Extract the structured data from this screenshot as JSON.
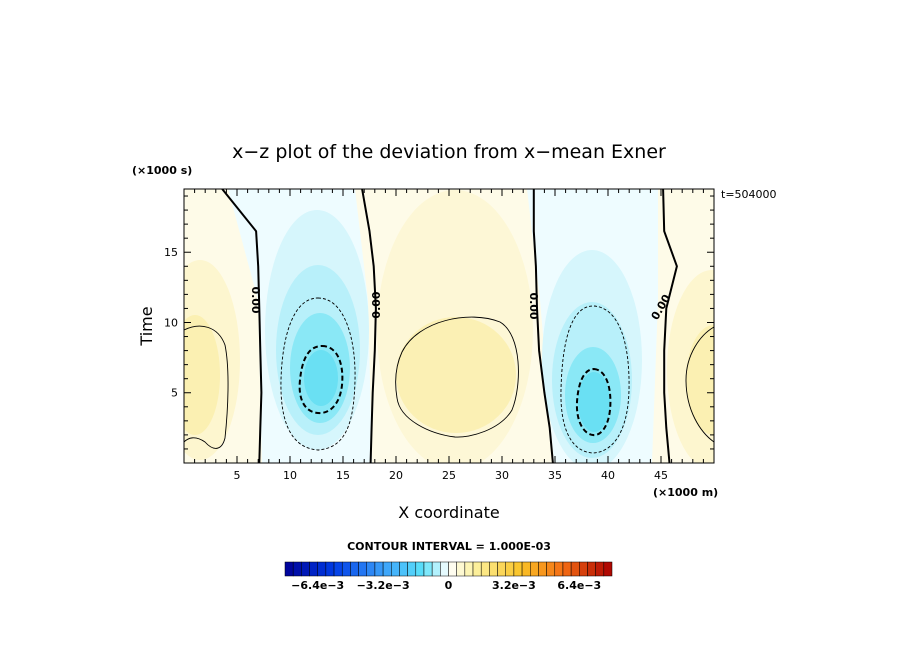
{
  "chart_data": {
    "type": "heatmap",
    "title": "x−z plot of the deviation from x−mean Exner",
    "xlabel": "X coordinate",
    "ylabel": "Time",
    "x_unit": "(×1000 m)",
    "y_unit": "(×1000 s)",
    "time_label": "t=504000",
    "xlim": [
      0,
      50
    ],
    "ylim": [
      0,
      19.5
    ],
    "x_ticks": [
      5,
      10,
      15,
      20,
      25,
      30,
      35,
      40,
      45
    ],
    "y_ticks": [
      5,
      10,
      15
    ],
    "contour_interval_label": "CONTOUR INTERVAL = 1.000E-03",
    "zero_contour_label": "0.00",
    "colorbar": {
      "min": -0.008,
      "max": 0.008,
      "tick_labels": [
        "−6.4e−3",
        "−3.2e−3",
        "0",
        "3.2e−3",
        "6.4e−3"
      ],
      "tick_values": [
        -0.0064,
        -0.0032,
        0,
        0.0032,
        0.0064
      ]
    },
    "features": [
      {
        "kind": "minimum",
        "x": 12.8,
        "y": 6.0,
        "value": -0.0035
      },
      {
        "kind": "minimum",
        "x": 38.5,
        "y": 4.5,
        "value": -0.0035
      },
      {
        "kind": "maximum",
        "x": 25.0,
        "y": 6.5,
        "value": 0.0015
      },
      {
        "kind": "maximum",
        "x": 1.5,
        "y": 7.0,
        "value": 0.0012
      },
      {
        "kind": "maximum",
        "x": 49.5,
        "y": 6.5,
        "value": 0.0012
      }
    ],
    "zero_contours": [
      {
        "x": [
          3.6,
          6.8,
          7.0,
          7.1,
          7.2,
          7.3,
          7.2,
          7.1
        ],
        "y": [
          19.5,
          16.5,
          14.0,
          11.0,
          8.0,
          5.0,
          2.5,
          0
        ]
      },
      {
        "x": [
          16.8,
          17.5,
          17.9,
          18.1,
          18.0,
          17.8,
          17.7,
          17.6
        ],
        "y": [
          19.5,
          16.5,
          14.0,
          11.0,
          8.0,
          5.0,
          2.5,
          0
        ]
      },
      {
        "x": [
          33.0,
          33.0,
          33.2,
          33.3,
          33.5,
          34.0,
          34.5,
          34.8
        ],
        "y": [
          19.5,
          16.5,
          14.0,
          11.0,
          8.0,
          5.0,
          2.5,
          0
        ]
      },
      {
        "x": [
          45.2,
          45.3,
          46.5,
          45.5,
          45.3,
          45.3,
          45.5,
          45.8
        ],
        "y": [
          19.5,
          16.5,
          14.0,
          11.0,
          8.0,
          5.0,
          2.5,
          0
        ]
      }
    ]
  }
}
